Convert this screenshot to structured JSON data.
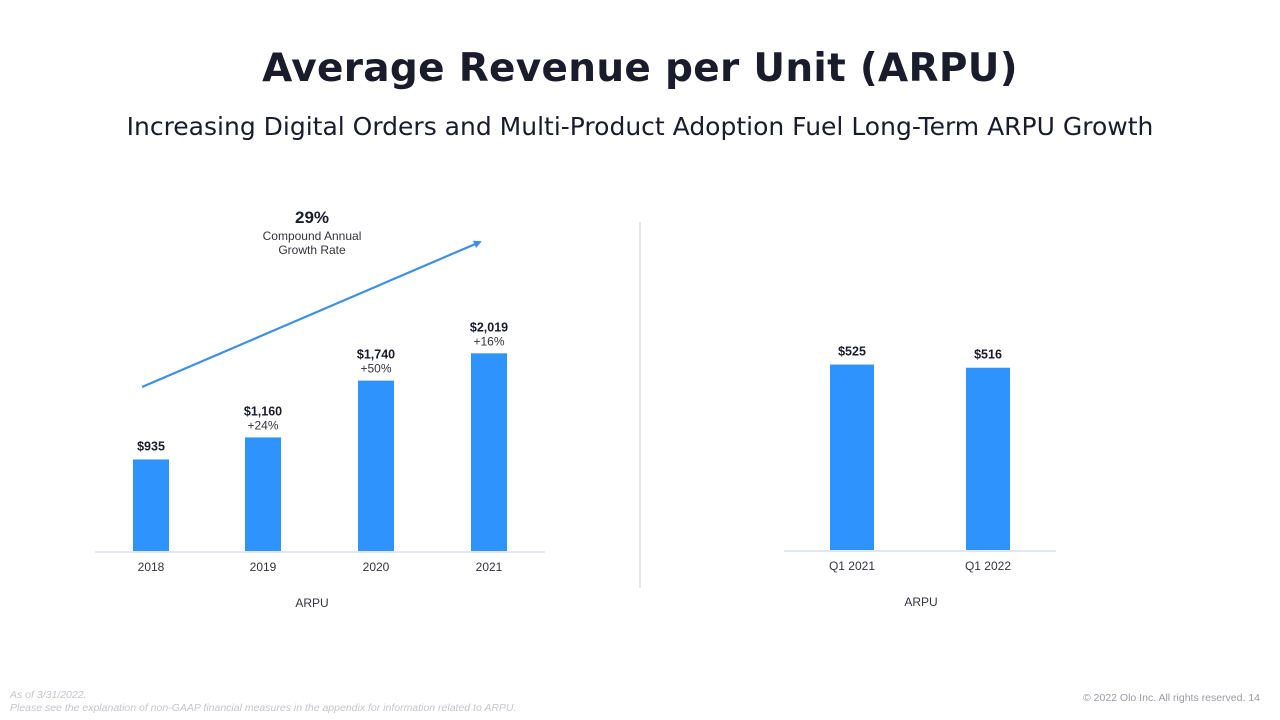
{
  "title": "Average Revenue per Unit (ARPU)",
  "subtitle": "Increasing Digital Orders and Multi-Product Adoption Fuel Long-Term ARPU Growth",
  "colors": {
    "bar": "#2e93fc",
    "arrow": "#3d8fe8",
    "axis": "#e3e6f3",
    "divider": "#e3e6f3"
  },
  "cagr": {
    "value": "29%",
    "label_line1": "Compound Annual",
    "label_line2": "Growth Rate"
  },
  "chart_data": [
    {
      "type": "bar",
      "categories": [
        "2018",
        "2019",
        "2020",
        "2021"
      ],
      "values": [
        935,
        1160,
        1740,
        2019
      ],
      "value_labels": [
        "$935",
        "$1,160",
        "$1,740",
        "$2,019"
      ],
      "growth_labels": [
        "",
        "+24%",
        "+50%",
        "+16%"
      ],
      "xlabel": "ARPU",
      "ylim": [
        0,
        2400
      ],
      "grid": false
    },
    {
      "type": "bar",
      "categories": [
        "Q1 2021",
        "Q1 2022"
      ],
      "values": [
        525,
        516
      ],
      "value_labels": [
        "$525",
        "$516"
      ],
      "xlabel": "ARPU",
      "ylim": [
        0,
        620
      ],
      "grid": false
    }
  ],
  "footer": {
    "note_line1": "As of 3/31/2022.",
    "note_line2": "Please see the explanation of non-GAAP financial measures in the appendix for information related to ARPU.",
    "copyright": "© 2022 Olo Inc. All rights reserved. 14"
  }
}
